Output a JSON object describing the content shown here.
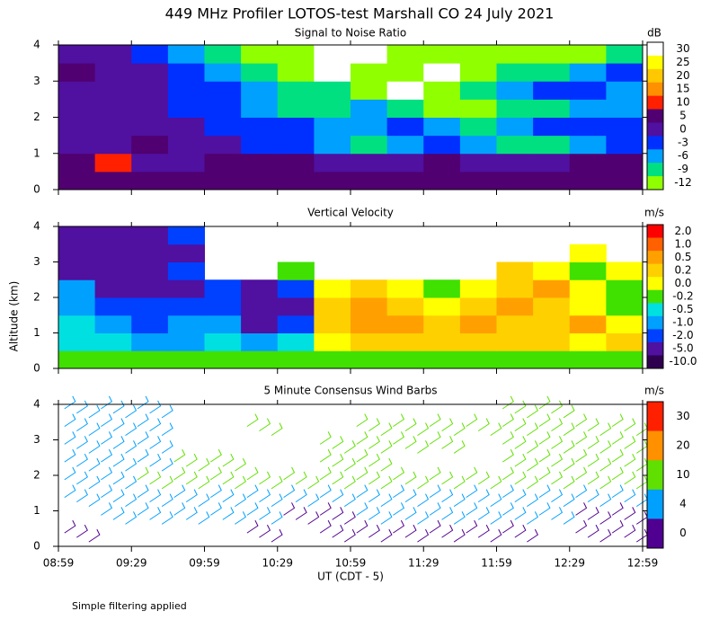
{
  "title": "449 MHz Profiler LOTOS-test Marshall CO 24 July 2021",
  "x_label": "UT  (CDT - 5)",
  "y_label": "Altitude (km)",
  "footnote": "Simple filtering applied",
  "xtick_labels": [
    "08:59",
    "09:29",
    "09:59",
    "10:29",
    "10:59",
    "11:29",
    "11:59",
    "12:29",
    "12:59"
  ],
  "chart_data": [
    {
      "type": "heatmap",
      "title": "Signal to Noise Ratio",
      "unit": "dB",
      "ylim": [
        0,
        4
      ],
      "yticks": [
        0,
        1,
        2,
        3,
        4
      ],
      "colorbar": {
        "ticks": [
          30,
          25,
          20,
          15,
          10,
          5,
          0,
          -3,
          -6,
          -9,
          -12
        ],
        "colors": [
          "#ffffff",
          "#ffff00",
          "#ffc800",
          "#ff9000",
          "#ff2000",
          "#500070",
          "#5010a0",
          "#0030ff",
          "#00a0ff",
          "#00e080",
          "#90ff00"
        ]
      },
      "values": [
        [
          5,
          5,
          5,
          5,
          5,
          5,
          5,
          5,
          5,
          5,
          5,
          5,
          5,
          5,
          5,
          5
        ],
        [
          5,
          10,
          0,
          0,
          5,
          5,
          5,
          0,
          0,
          0,
          5,
          0,
          0,
          0,
          5,
          5
        ],
        [
          0,
          0,
          5,
          0,
          0,
          -3,
          -3,
          -6,
          -9,
          -6,
          -3,
          -6,
          -9,
          -9,
          -6,
          -3
        ],
        [
          0,
          0,
          0,
          0,
          -3,
          -3,
          -3,
          -6,
          -6,
          -3,
          -6,
          -9,
          -6,
          -3,
          -3,
          -3
        ],
        [
          0,
          0,
          0,
          -3,
          -3,
          -6,
          -9,
          -9,
          -6,
          -9,
          -12,
          -12,
          -9,
          -9,
          -6,
          -6
        ],
        [
          0,
          0,
          0,
          -3,
          -3,
          -6,
          -9,
          -9,
          -12,
          30,
          -12,
          -9,
          -6,
          -3,
          -3,
          -6
        ],
        [
          5,
          0,
          0,
          -3,
          -6,
          -9,
          -12,
          30,
          -12,
          -12,
          30,
          -12,
          -9,
          -9,
          -6,
          -3
        ],
        [
          0,
          0,
          -3,
          -6,
          -9,
          -12,
          -12,
          30,
          30,
          -12,
          -12,
          -12,
          -12,
          -12,
          -12,
          -9
        ]
      ]
    },
    {
      "type": "heatmap",
      "title": "Vertical Velocity",
      "unit": "m/s",
      "ylim": [
        0,
        4
      ],
      "yticks": [
        0,
        1,
        2,
        3,
        4
      ],
      "colorbar": {
        "ticks": [
          {
            "value": 2,
            "label": "2.0"
          },
          {
            "value": 1,
            "label": "1.0"
          },
          0.5,
          0.2,
          {
            "value": 0,
            "label": "0.0"
          },
          -0.2,
          -0.5,
          {
            "value": -1,
            "label": "-1.0"
          },
          {
            "value": -2,
            "label": "-2.0"
          },
          {
            "value": -5,
            "label": "-5.0"
          },
          {
            "value": -10,
            "label": "-10.0"
          }
        ],
        "colors": [
          "#ff0000",
          "#ff6000",
          "#ffa000",
          "#ffd000",
          "#ffff00",
          "#40e000",
          "#00e0e0",
          "#00a0ff",
          "#0040ff",
          "#5010a0",
          "#300050"
        ]
      },
      "values": [
        [
          -0.2,
          -0.2,
          -0.2,
          -0.2,
          -0.2,
          -0.2,
          -0.2,
          -0.2,
          -0.2,
          -0.2,
          -0.2,
          -0.2,
          -0.2,
          -0.2,
          -0.2,
          -0.2
        ],
        [
          -0.5,
          -0.5,
          -1,
          -1,
          -0.5,
          -1,
          -0.5,
          0,
          0.2,
          0.2,
          0.2,
          0.2,
          0.2,
          0.2,
          0,
          0.2
        ],
        [
          -0.5,
          -1,
          -2,
          -1,
          -1,
          -5,
          -2,
          0.2,
          0.5,
          0.5,
          0.2,
          0.5,
          0.2,
          0.2,
          0.5,
          0
        ],
        [
          -1,
          -2,
          -2,
          -2,
          -2,
          -5,
          -5,
          0.2,
          0.5,
          0.2,
          0,
          0.2,
          0.5,
          0.2,
          0,
          -0.2
        ],
        [
          -1,
          -5,
          -5,
          -5,
          -2,
          -5,
          -2,
          0,
          0.2,
          0,
          -0.2,
          0,
          0.2,
          0.5,
          0,
          -0.2
        ],
        [
          -5,
          -5,
          -5,
          -2,
          null,
          null,
          -0.2,
          null,
          null,
          null,
          null,
          null,
          0.2,
          0,
          -0.2,
          0
        ],
        [
          -5,
          -5,
          -5,
          -5,
          null,
          null,
          null,
          null,
          null,
          null,
          null,
          null,
          null,
          null,
          0,
          null
        ],
        [
          -5,
          -5,
          -5,
          -2,
          null,
          null,
          null,
          null,
          null,
          null,
          null,
          null,
          null,
          null,
          null,
          null
        ]
      ]
    },
    {
      "type": "barbs",
      "title": "5 Minute Consensus Wind Barbs",
      "unit": "m/s",
      "ylim": [
        0,
        4
      ],
      "yticks": [
        0,
        1,
        2,
        3,
        4
      ],
      "colorbar": {
        "ticks": [
          30,
          20,
          10,
          4,
          0
        ],
        "colors": [
          "#ff2000",
          "#ff9000",
          "#60e000",
          "#00a0ff",
          "#500090"
        ]
      },
      "values": [
        [
          2,
          null,
          null,
          null,
          null,
          2,
          null,
          2,
          2,
          2,
          2,
          2,
          2,
          null,
          2,
          2
        ],
        [
          null,
          4,
          4,
          4,
          4,
          4,
          2,
          2,
          4,
          4,
          4,
          4,
          4,
          4,
          2,
          2
        ],
        [
          8,
          6,
          8,
          8,
          8,
          8,
          8,
          8,
          8,
          8,
          8,
          8,
          8,
          6,
          6,
          6
        ],
        [
          8,
          8,
          10,
          10,
          10,
          10,
          10,
          10,
          10,
          10,
          10,
          10,
          10,
          10,
          10,
          10
        ],
        [
          6,
          8,
          4,
          10,
          10,
          null,
          null,
          14,
          10,
          null,
          null,
          null,
          14,
          14,
          10,
          10
        ],
        [
          4,
          4,
          4,
          null,
          null,
          null,
          null,
          10,
          10,
          10,
          10,
          null,
          10,
          14,
          14,
          10
        ],
        [
          4,
          4,
          4,
          null,
          null,
          10,
          null,
          null,
          10,
          10,
          10,
          10,
          10,
          10,
          10,
          10
        ],
        [
          4,
          4,
          4,
          null,
          null,
          null,
          null,
          null,
          null,
          null,
          null,
          null,
          10,
          10,
          null,
          null
        ]
      ]
    }
  ]
}
